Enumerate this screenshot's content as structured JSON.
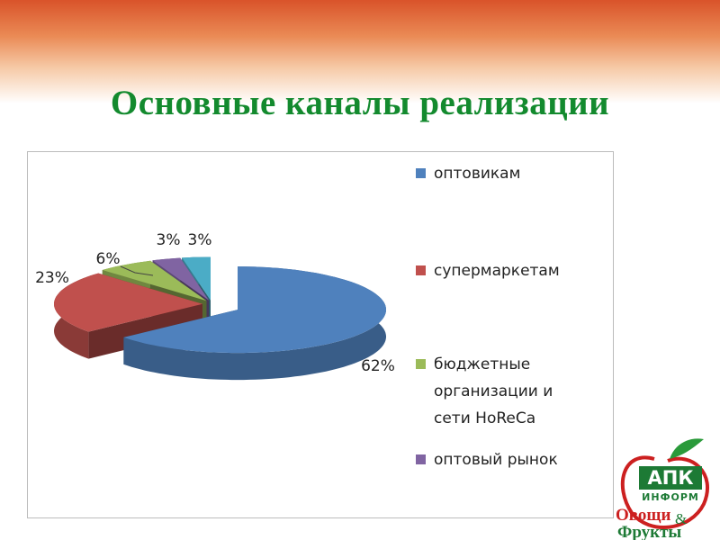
{
  "chart_data": {
    "type": "pie3d",
    "title": "Основные каналы реализации",
    "categories": [
      "оптовикам",
      "супермаркетам",
      "бюджетные организации и сети HoReCa",
      "оптовый рынок",
      null
    ],
    "values": [
      62,
      23,
      6,
      3,
      3
    ],
    "value_labels": [
      "62%",
      "23%",
      "6%",
      "3%",
      "3%"
    ],
    "colors": [
      "#4f81bd",
      "#c0504d",
      "#9bbb59",
      "#8064a2",
      "#4bacc6"
    ],
    "legend": "right"
  },
  "logo": {
    "top": "АПК",
    "middle": "ИНФОРМ",
    "line1": "Овощи",
    "amp": "&",
    "line2": "Фрукты"
  }
}
